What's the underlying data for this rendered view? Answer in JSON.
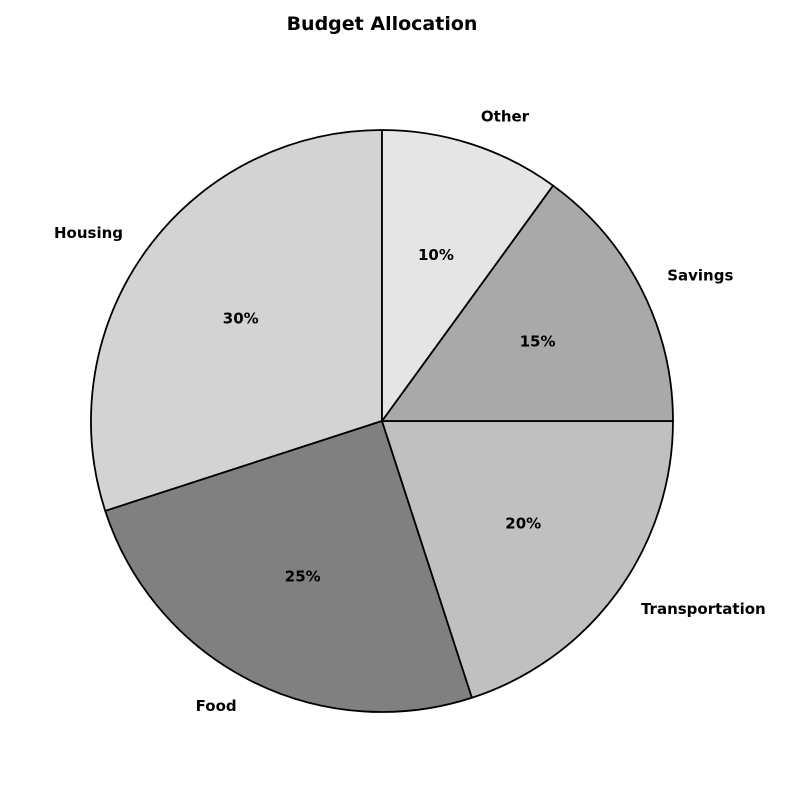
{
  "chart_data": {
    "type": "pie",
    "title": "Budget Allocation",
    "categories": [
      "Housing",
      "Food",
      "Transportation",
      "Savings",
      "Other"
    ],
    "values": [
      30,
      25,
      20,
      15,
      10
    ],
    "percent_labels": [
      "30%",
      "25%",
      "20%",
      "15%",
      "10%"
    ],
    "colors": [
      "#d3d3d3",
      "#808080",
      "#c0c0c0",
      "#a9a9a9",
      "#e5e5e5"
    ],
    "start_angle_deg": 90,
    "direction": "counterclockwise",
    "edge_color": "#000000",
    "legend": "none"
  }
}
